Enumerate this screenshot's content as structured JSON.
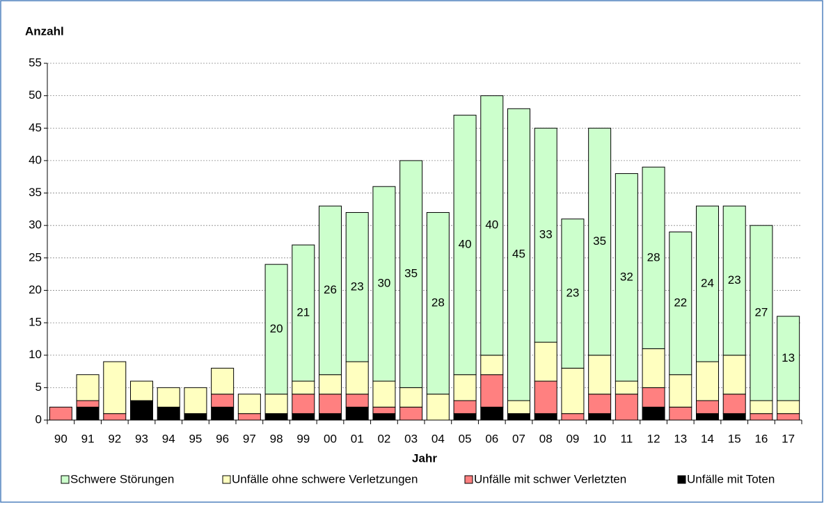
{
  "chart_data": {
    "type": "stacked_bar",
    "y_label": "Anzahl",
    "x_label": "Jahr",
    "categories": [
      "90",
      "91",
      "92",
      "93",
      "94",
      "95",
      "96",
      "97",
      "98",
      "99",
      "00",
      "01",
      "02",
      "03",
      "04",
      "05",
      "06",
      "07",
      "08",
      "09",
      "10",
      "11",
      "12",
      "13",
      "14",
      "15",
      "16",
      "17"
    ],
    "series": [
      {
        "name": "Unfälle mit Toten",
        "color": "#000000",
        "values": [
          0,
          2,
          0,
          3,
          2,
          1,
          2,
          0,
          1,
          1,
          1,
          2,
          1,
          0,
          0,
          1,
          2,
          1,
          1,
          0,
          1,
          0,
          2,
          0,
          1,
          1,
          0,
          0
        ]
      },
      {
        "name": "Unfälle mit schwer Verletzten",
        "color": "#ff8080",
        "values": [
          2,
          1,
          1,
          0,
          0,
          0,
          2,
          1,
          0,
          3,
          3,
          2,
          1,
          2,
          0,
          2,
          5,
          0,
          5,
          1,
          3,
          4,
          3,
          2,
          2,
          3,
          1,
          1
        ]
      },
      {
        "name": "Unfälle ohne schwere Verletzungen",
        "color": "#ffffc0",
        "values": [
          0,
          4,
          8,
          3,
          3,
          4,
          4,
          3,
          3,
          2,
          3,
          5,
          4,
          3,
          4,
          4,
          3,
          2,
          6,
          7,
          6,
          2,
          6,
          5,
          6,
          6,
          2,
          2
        ]
      },
      {
        "name": "Schwere Störungen",
        "color": "#ccffcc",
        "values": [
          null,
          null,
          null,
          null,
          null,
          null,
          null,
          null,
          20,
          21,
          26,
          23,
          30,
          35,
          28,
          40,
          40,
          45,
          33,
          23,
          35,
          32,
          28,
          22,
          24,
          23,
          27,
          13
        ]
      }
    ],
    "ylim": [
      0,
      55
    ],
    "yticks": [
      0,
      5,
      10,
      15,
      20,
      25,
      30,
      35,
      40,
      45,
      50,
      55
    ],
    "grid": true
  }
}
